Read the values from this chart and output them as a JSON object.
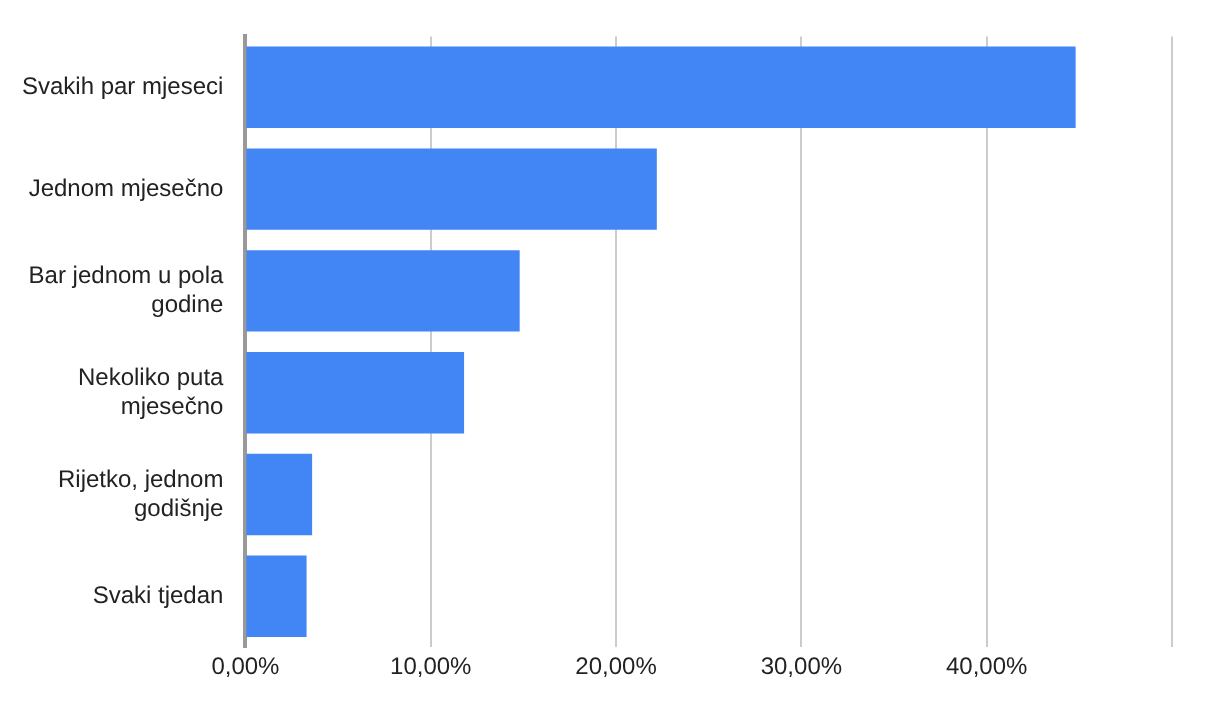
{
  "chart_data": {
    "type": "bar",
    "orientation": "horizontal",
    "categories": [
      "Svakih par mjeseci",
      "Jednom mjesečno",
      "Bar jednom u pola godine",
      "Nekoliko puta mjesečno",
      "Rijetko, jednom godišnje",
      "Svaki tjedan"
    ],
    "values": [
      44.8,
      22.2,
      14.8,
      11.8,
      3.6,
      3.3
    ],
    "color": "#4285f4",
    "xlim": [
      0,
      50
    ],
    "xticks": [
      {
        "value": 0,
        "label": "0,00%"
      },
      {
        "value": 10,
        "label": "10,00%"
      },
      {
        "value": 20,
        "label": "20,00%"
      },
      {
        "value": 30,
        "label": "30,00%"
      },
      {
        "value": 40,
        "label": "40,00%"
      },
      {
        "value": 50,
        "label": null
      }
    ],
    "grid": "x",
    "legend": false
  }
}
